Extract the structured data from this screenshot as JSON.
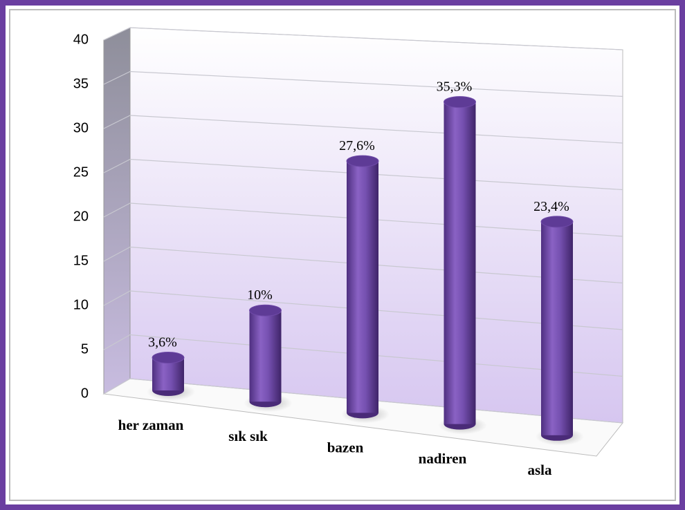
{
  "chart_data": {
    "type": "bar",
    "categories": [
      "her zaman",
      "sık sık",
      "bazen",
      "nadiren",
      "asla"
    ],
    "values": [
      3.6,
      10,
      27.6,
      35.3,
      23.4
    ],
    "value_labels": [
      "3,6%",
      "10%",
      "27,6%",
      "35,3%",
      "23,4%"
    ],
    "color": "#7b52b5",
    "ylim": [
      0,
      40
    ],
    "yticks": [
      0,
      5,
      10,
      15,
      20,
      25,
      30,
      35,
      40
    ],
    "grid": true
  }
}
